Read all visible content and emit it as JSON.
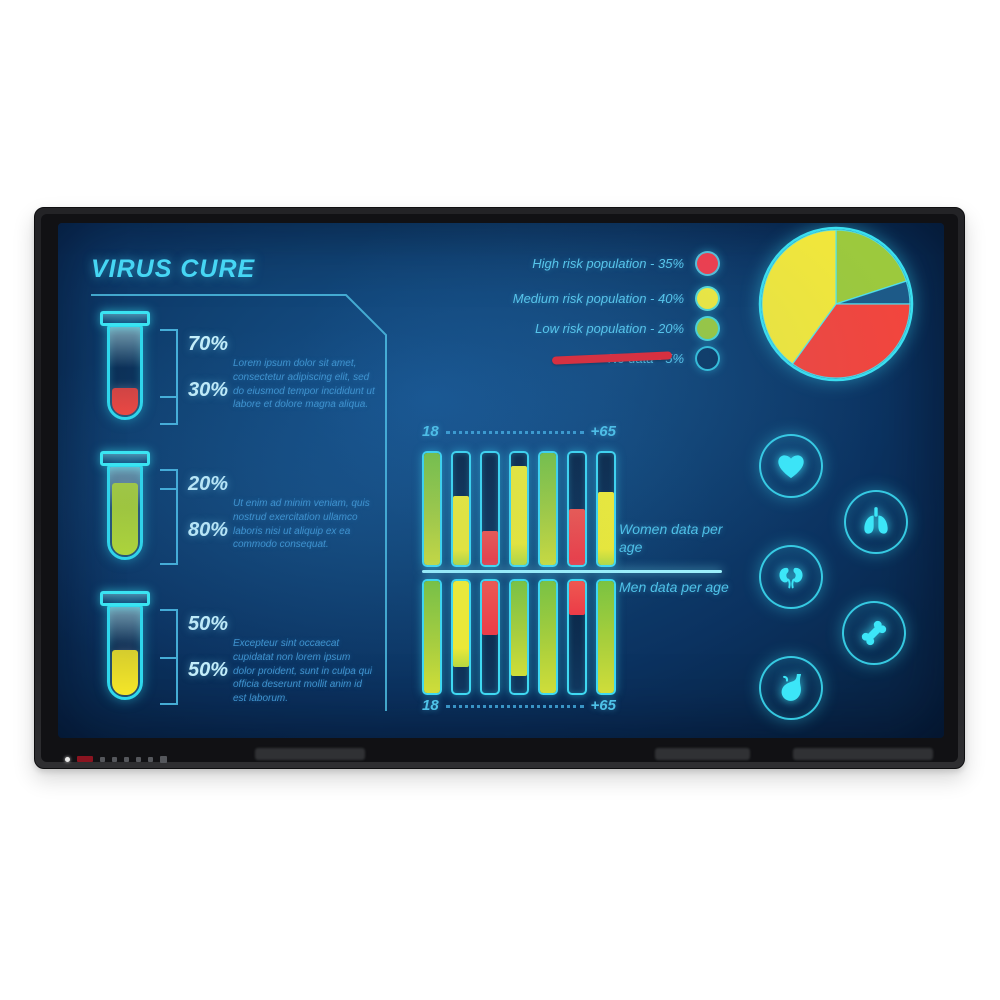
{
  "screen": {
    "title": "VIRUS CURE",
    "tubes": [
      {
        "top_pct": "70%",
        "bottom_pct": "30%",
        "fill_percent": 30,
        "fill_color": "#f2453d",
        "description": "Lorem ipsum dolor sit amet, consectetur adipiscing elit, sed do eiusmod tempor incididunt ut labore et dolore magna aliqua."
      },
      {
        "top_pct": "20%",
        "bottom_pct": "80%",
        "fill_percent": 80,
        "fill_color": "#b4d832",
        "description": "Ut enim ad minim veniam, quis nostrud exercitation ullamco laboris nisi ut aliquip ex ea commodo consequat."
      },
      {
        "top_pct": "50%",
        "bottom_pct": "50%",
        "fill_percent": 50,
        "fill_color": "#f5e628",
        "description": "Excepteur sint occaecat cupidatat non lorem ipsum dolor proident, sunt in culpa qui officia deserunt mollit anim id est laborum."
      }
    ],
    "legend": [
      {
        "text": "High risk population - 35%",
        "color": "#f23b4a",
        "struck": false
      },
      {
        "text": "Medium risk population - 40%",
        "color": "#f2ea3c",
        "struck": false
      },
      {
        "text": "Low risk population - 20%",
        "color": "#9cc93d",
        "struck": false
      },
      {
        "text": "No data - 5%",
        "color": "transparent",
        "struck": true
      }
    ],
    "age_axis": {
      "start": "18",
      "end": "+65"
    },
    "women_label": "Women data per age",
    "men_label": "Men data per age",
    "icons": [
      "heart-icon",
      "lungs-icon",
      "kidneys-icon",
      "bone-icon",
      "stomach-icon"
    ],
    "accent_color": "#3ae0f2",
    "background_color": "#0c3a6b"
  },
  "chart_data": [
    {
      "type": "pie",
      "slices": [
        {
          "label": "Low risk population",
          "value": 20,
          "color": "#9cc93d"
        },
        {
          "label": "No data",
          "value": 5,
          "color": "#1d5a88"
        },
        {
          "label": "High risk population",
          "value": 35,
          "color": "#f2453d"
        },
        {
          "label": "Medium risk population",
          "value": 40,
          "color": "#f2e73a"
        }
      ],
      "start_angle_deg": 0,
      "direction": "clockwise",
      "legend_position": "left"
    },
    {
      "type": "bar",
      "title": "Women data per age",
      "x_axis": {
        "start": "18",
        "end": "+65"
      },
      "orientation": "vertical",
      "ylim": [
        0,
        100
      ],
      "bars": [
        {
          "fill_pct": 100,
          "color": "#9ed63a"
        },
        {
          "fill_pct": 62,
          "color": "#f2e73a"
        },
        {
          "fill_pct": 30,
          "color": "#f2453d"
        },
        {
          "fill_pct": 88,
          "color": "#f2e73a"
        },
        {
          "fill_pct": 100,
          "color": "#9ed63a"
        },
        {
          "fill_pct": 50,
          "color": "#f2453d"
        },
        {
          "fill_pct": 65,
          "color": "#f2e73a"
        }
      ]
    },
    {
      "type": "bar",
      "title": "Men data per age",
      "x_axis": {
        "start": "18",
        "end": "+65"
      },
      "orientation": "vertical-inverted",
      "ylim": [
        0,
        100
      ],
      "bars": [
        {
          "fill_pct": 100,
          "color": "#9ed63a"
        },
        {
          "fill_pct": 77,
          "color": "#f2e73a"
        },
        {
          "fill_pct": 48,
          "color": "#f2453d"
        },
        {
          "fill_pct": 85,
          "color": "#9ed63a"
        },
        {
          "fill_pct": 100,
          "color": "#9ed63a"
        },
        {
          "fill_pct": 30,
          "color": "#f2453d"
        },
        {
          "fill_pct": 100,
          "color": "#9ed63a"
        }
      ]
    }
  ]
}
